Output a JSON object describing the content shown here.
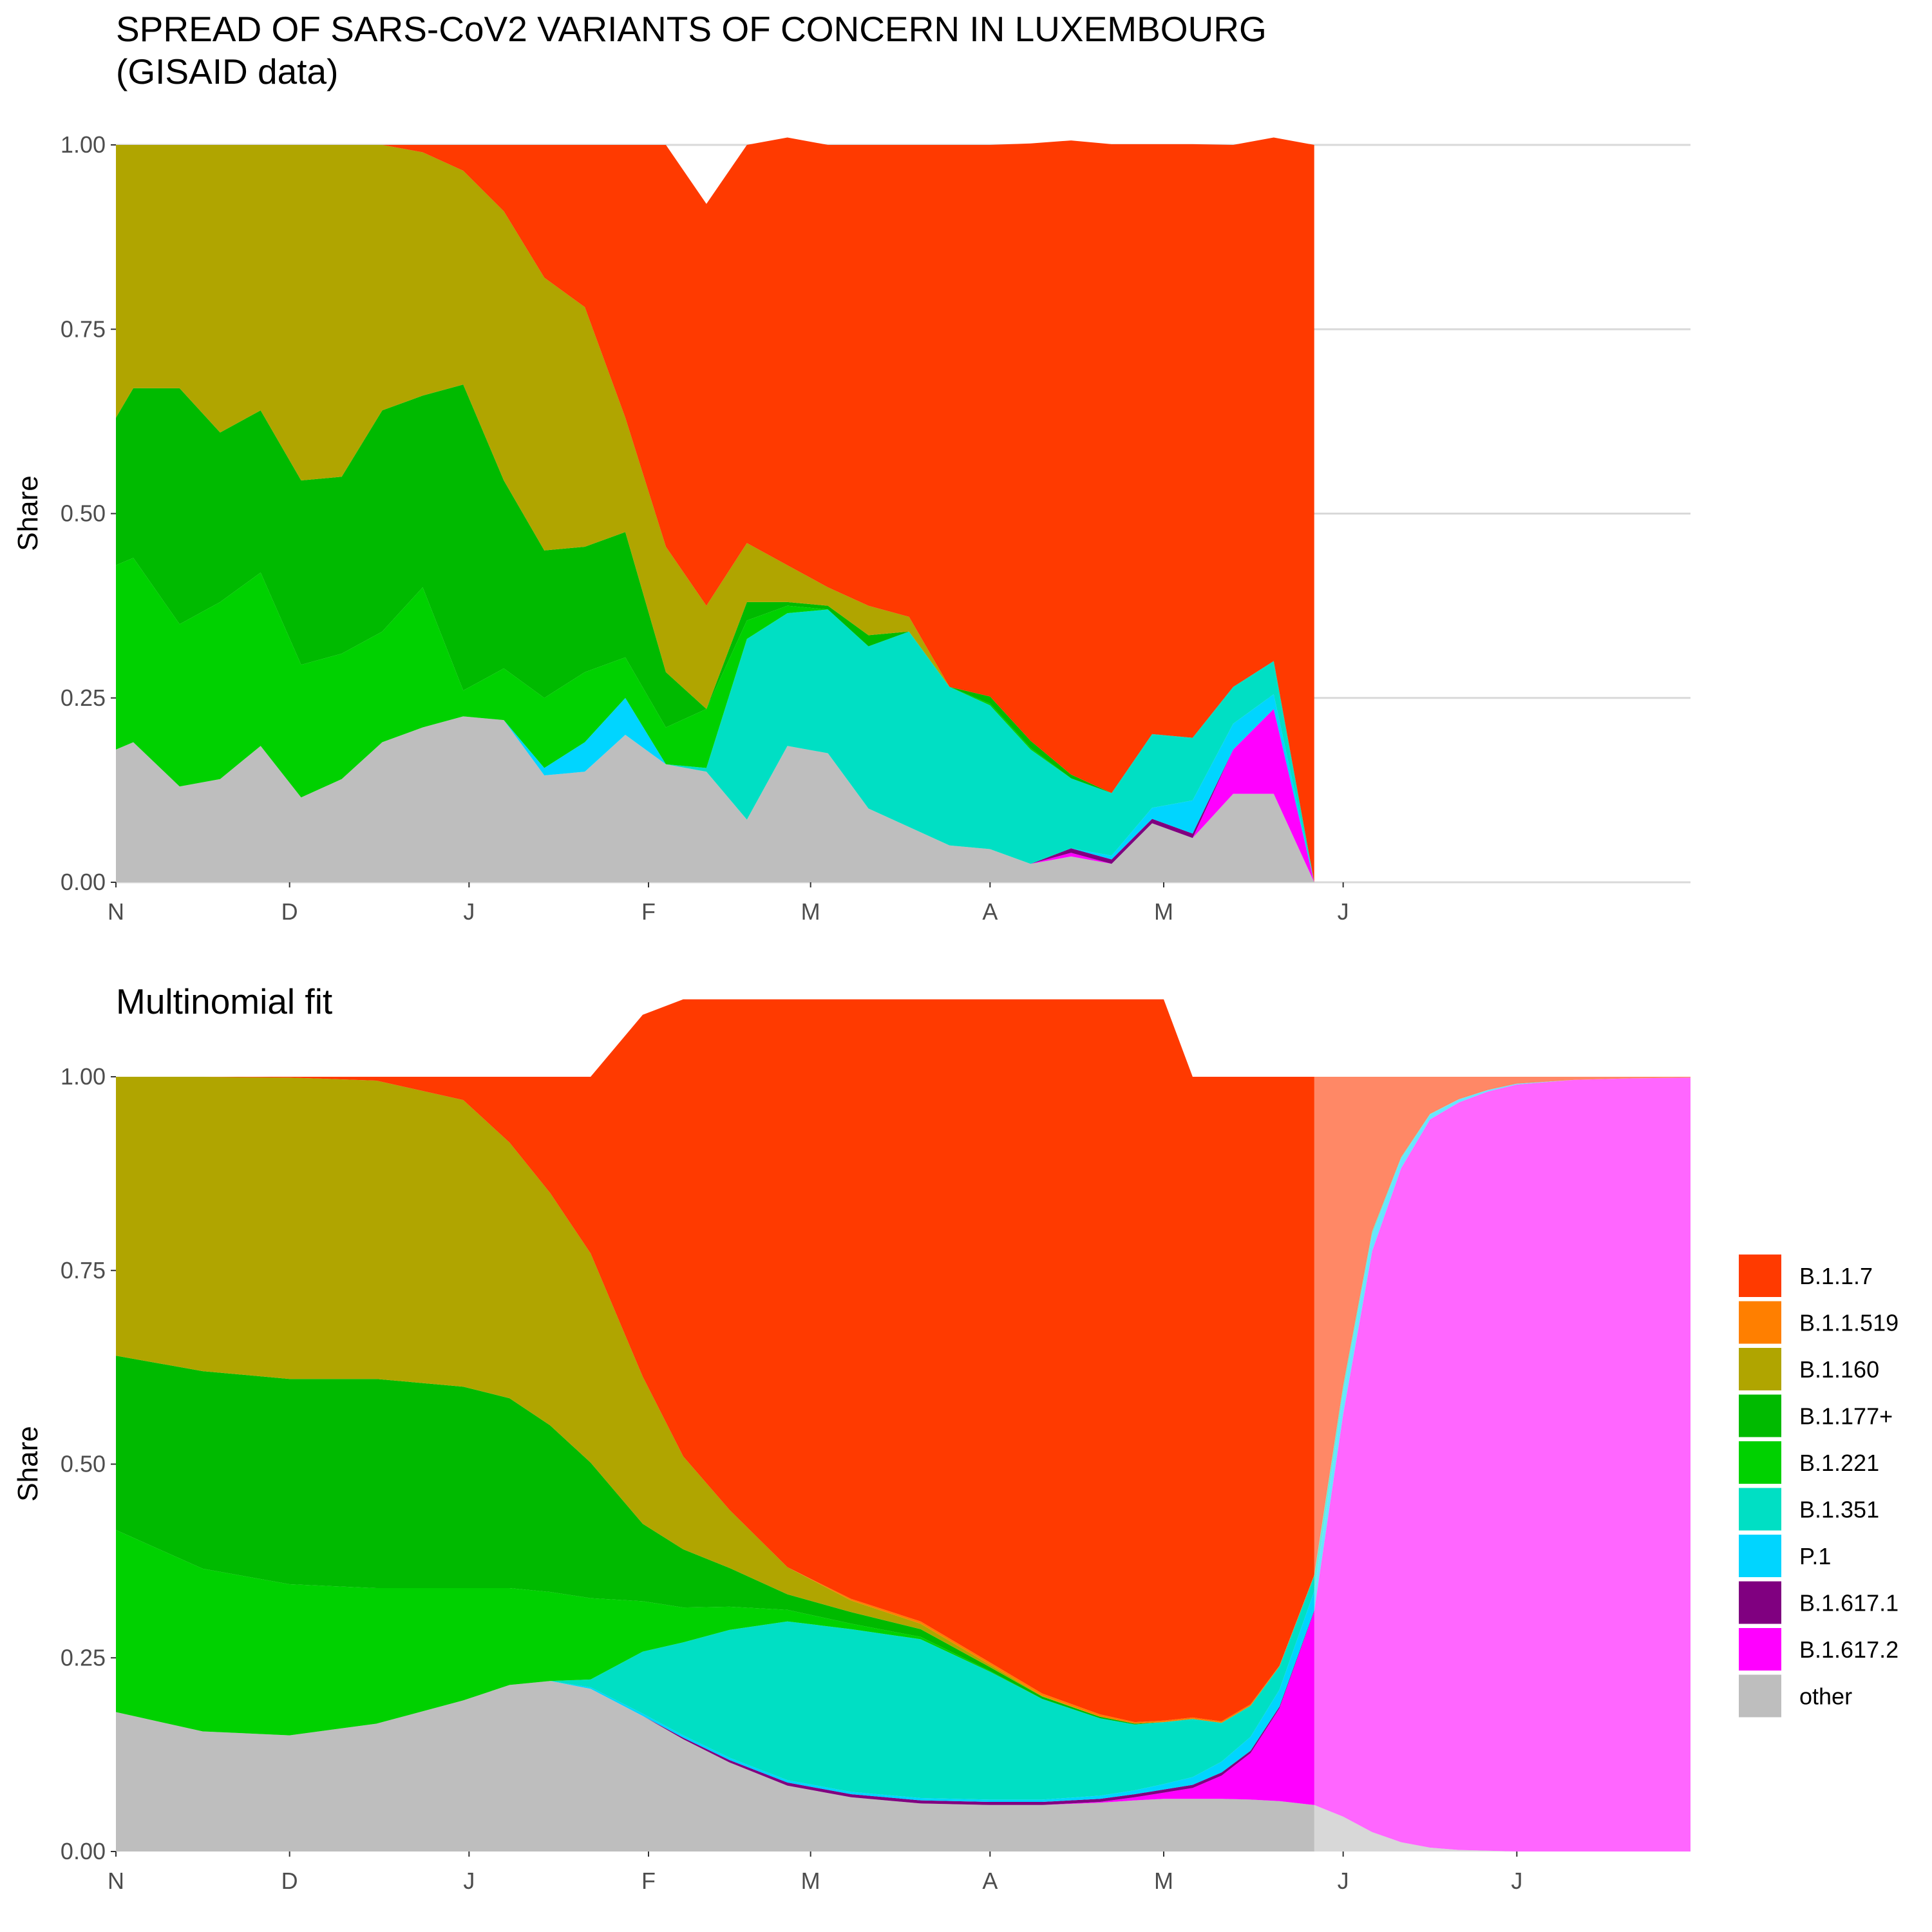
{
  "titles": {
    "top": "SPREAD OF SARS-CoV2 VARIANTS OF CONCERN IN LUXEMBOURG\n(GISAID data)",
    "bottom": "Multinomial fit"
  },
  "chart_data": [
    {
      "type": "area",
      "stacked": true,
      "title": "SPREAD OF SARS-CoV2 VARIANTS OF CONCERN IN LUXEMBOURG\n(GISAID data)",
      "xlabel": "",
      "ylabel": "Share",
      "xlim": [
        "2020-11-01",
        "2021-07-31"
      ],
      "ylim": [
        0,
        1
      ],
      "y_ticks": [
        "0.00",
        "0.25",
        "0.50",
        "0.75",
        "1.00"
      ],
      "x_ticks": [
        {
          "date": "2020-11-01",
          "label": "N"
        },
        {
          "date": "2020-12-01",
          "label": "D"
        },
        {
          "date": "2021-01-01",
          "label": "J"
        },
        {
          "date": "2021-02-01",
          "label": "F"
        },
        {
          "date": "2021-03-01",
          "label": "M"
        },
        {
          "date": "2021-04-01",
          "label": "A"
        },
        {
          "date": "2021-05-01",
          "label": "M"
        },
        {
          "date": "2021-06-01",
          "label": "J"
        }
      ],
      "grid": "horizontal",
      "x": [
        "2020-11-01",
        "2020-11-04",
        "2020-11-12",
        "2020-11-19",
        "2020-11-26",
        "2020-12-03",
        "2020-12-10",
        "2020-12-17",
        "2020-12-24",
        "2020-12-31",
        "2021-01-07",
        "2021-01-14",
        "2021-01-21",
        "2021-01-28",
        "2021-02-04",
        "2021-02-11",
        "2021-02-18",
        "2021-02-25",
        "2021-03-04",
        "2021-03-11",
        "2021-03-18",
        "2021-03-25",
        "2021-04-01",
        "2021-04-08",
        "2021-04-15",
        "2021-04-22",
        "2021-04-29",
        "2021-05-06",
        "2021-05-13",
        "2021-05-20",
        "2021-05-27"
      ],
      "series": [
        {
          "name": "other",
          "color": "#BEBEBE",
          "values": [
            0.18,
            0.19,
            0.13,
            0.14,
            0.185,
            0.115,
            0.14,
            0.19,
            0.21,
            0.225,
            0.22,
            0.145,
            0.15,
            0.2,
            0.16,
            0.15,
            0.085,
            0.185,
            0.175,
            0.1,
            0.075,
            0.05,
            0.045,
            0.025,
            0.035,
            0.025,
            0.08,
            0.06,
            0.12,
            0.12,
            0
          ]
        },
        {
          "name": "B.1.617.2",
          "color": "#FF00FF",
          "values": [
            0,
            0,
            0,
            0,
            0,
            0,
            0,
            0,
            0,
            0,
            0,
            0,
            0,
            0,
            0,
            0,
            0,
            0,
            0,
            0,
            0,
            0,
            0,
            0,
            0.005,
            0,
            0,
            0,
            0.06,
            0.115,
            0
          ]
        },
        {
          "name": "B.1.617.1",
          "color": "#800080",
          "values": [
            0,
            0,
            0,
            0,
            0,
            0,
            0,
            0,
            0,
            0,
            0,
            0,
            0,
            0,
            0,
            0,
            0,
            0,
            0,
            0,
            0,
            0,
            0,
            0,
            0.006,
            0.006,
            0.006,
            0.006,
            0,
            0,
            0
          ]
        },
        {
          "name": "P.1",
          "color": "#00D5FF",
          "values": [
            0,
            0,
            0,
            0,
            0,
            0,
            0,
            0,
            0,
            0,
            0,
            0.01,
            0.04,
            0.05,
            0,
            0,
            0,
            0,
            0,
            0,
            0,
            0,
            0,
            0,
            0,
            0.005,
            0.015,
            0.045,
            0.035,
            0.02,
            0
          ]
        },
        {
          "name": "B.1.351",
          "color": "#00DFC4",
          "values": [
            0,
            0,
            0,
            0,
            0,
            0,
            0,
            0,
            0,
            0,
            0,
            0,
            0,
            0,
            0,
            0.005,
            0.245,
            0.18,
            0.195,
            0.22,
            0.265,
            0.215,
            0.195,
            0.155,
            0.095,
            0.085,
            0.1,
            0.085,
            0.05,
            0.045,
            0
          ]
        },
        {
          "name": "B.1.221",
          "color": "#00D100",
          "values": [
            0.25,
            0.25,
            0.22,
            0.24,
            0.235,
            0.18,
            0.17,
            0.15,
            0.19,
            0.035,
            0.07,
            0.095,
            0.095,
            0.055,
            0.05,
            0.08,
            0.025,
            0.01,
            0,
            0,
            0,
            0,
            0.002,
            0.002,
            0,
            0,
            0,
            0,
            0,
            0,
            0
          ]
        },
        {
          "name": "B.1.177+",
          "color": "#00BA00",
          "values": [
            0.2,
            0.23,
            0.32,
            0.23,
            0.22,
            0.25,
            0.24,
            0.3,
            0.26,
            0.415,
            0.255,
            0.2,
            0.17,
            0.17,
            0.075,
            0,
            0.025,
            0.005,
            0.005,
            0.015,
            0,
            0,
            0.01,
            0.01,
            0.005,
            0,
            0,
            0,
            0,
            0,
            0
          ]
        },
        {
          "name": "B.1.160",
          "color": "#B0A500",
          "values": [
            0.37,
            0.33,
            0.33,
            0.39,
            0.36,
            0.455,
            0.45,
            0.36,
            0.33,
            0.29,
            0.365,
            0.37,
            0.325,
            0.155,
            0.17,
            0.14,
            0.08,
            0.05,
            0.025,
            0.04,
            0.02,
            0,
            0,
            0,
            0,
            0,
            0,
            0,
            0,
            0,
            0
          ]
        },
        {
          "name": "B.1.1.519",
          "color": "#FF7F00",
          "values": [
            0,
            0,
            0,
            0,
            0,
            0,
            0,
            0,
            0,
            0,
            0,
            0,
            0,
            0,
            0,
            0,
            0,
            0,
            0,
            0,
            0,
            0,
            0,
            0,
            0,
            0,
            0,
            0,
            0,
            0,
            0
          ]
        },
        {
          "name": "B.1.1.7",
          "color": "#FF3A00",
          "values": [
            0,
            0,
            0,
            0,
            0,
            0,
            0,
            0,
            0.01,
            0.035,
            0.09,
            0.18,
            0.22,
            0.37,
            0.545,
            0.545,
            0.54,
            0.58,
            0.6,
            0.625,
            0.64,
            0.735,
            0.748,
            0.81,
            0.86,
            0.88,
            0.8,
            0.805,
            0.735,
            0.71,
            1
          ]
        }
      ]
    },
    {
      "type": "area",
      "stacked": true,
      "title": "Multinomial fit",
      "xlabel": "",
      "ylabel": "Share",
      "xlim": [
        "2020-11-01",
        "2021-07-31"
      ],
      "ylim": [
        0,
        1
      ],
      "y_ticks": [
        "0.00",
        "0.25",
        "0.50",
        "0.75",
        "1.00"
      ],
      "x_ticks": [
        {
          "date": "2020-11-01",
          "label": "N"
        },
        {
          "date": "2020-12-01",
          "label": "D"
        },
        {
          "date": "2021-01-01",
          "label": "J"
        },
        {
          "date": "2021-02-01",
          "label": "F"
        },
        {
          "date": "2021-03-01",
          "label": "M"
        },
        {
          "date": "2021-04-01",
          "label": "A"
        },
        {
          "date": "2021-05-01",
          "label": "M"
        },
        {
          "date": "2021-06-01",
          "label": "J"
        },
        {
          "date": "2021-07-01",
          "label": "J"
        }
      ],
      "grid": "none",
      "projection_start": "2021-05-27",
      "x": [
        "2020-11-01",
        "2020-11-16",
        "2020-12-01",
        "2020-12-16",
        "2020-12-31",
        "2021-01-08",
        "2021-01-15",
        "2021-01-22",
        "2021-01-31",
        "2021-02-07",
        "2021-02-15",
        "2021-02-25",
        "2021-03-08",
        "2021-03-20",
        "2021-04-01",
        "2021-04-10",
        "2021-04-20",
        "2021-04-26",
        "2021-05-01",
        "2021-05-06",
        "2021-05-11",
        "2021-05-16",
        "2021-05-21",
        "2021-05-27",
        "2021-06-01",
        "2021-06-06",
        "2021-06-11",
        "2021-06-16",
        "2021-06-21",
        "2021-06-26",
        "2021-07-01",
        "2021-07-11",
        "2021-07-21",
        "2021-07-31"
      ],
      "series": [
        {
          "name": "other",
          "color": "#BEBEBE",
          "values": [
            0.18,
            0.155,
            0.15,
            0.165,
            0.195,
            0.215,
            0.22,
            0.21,
            0.175,
            0.145,
            0.115,
            0.085,
            0.07,
            0.062,
            0.06,
            0.06,
            0.063,
            0.066,
            0.068,
            0.068,
            0.068,
            0.067,
            0.065,
            0.06,
            0.045,
            0.025,
            0.012,
            0.005,
            0.002,
            0.001,
            0,
            0,
            0,
            0
          ]
        },
        {
          "name": "B.1.617.2",
          "color": "#FF00FF",
          "values": [
            0,
            0,
            0,
            0,
            0,
            0,
            0,
            0,
            0,
            0,
            0,
            0,
            0,
            0,
            0,
            0,
            0.001,
            0.004,
            0.008,
            0.014,
            0.03,
            0.06,
            0.12,
            0.25,
            0.52,
            0.75,
            0.87,
            0.94,
            0.965,
            0.98,
            0.99,
            0.996,
            0.998,
            0.999
          ]
        },
        {
          "name": "B.1.617.1",
          "color": "#800080",
          "values": [
            0,
            0,
            0,
            0,
            0,
            0,
            0,
            0,
            0,
            0.002,
            0.003,
            0.004,
            0.004,
            0.004,
            0.004,
            0.004,
            0.004,
            0.004,
            0.004,
            0.004,
            0.004,
            0.003,
            0.002,
            0.001,
            0,
            0,
            0,
            0,
            0,
            0,
            0,
            0,
            0,
            0
          ]
        },
        {
          "name": "P.1",
          "color": "#00D5FF",
          "values": [
            0,
            0,
            0,
            0,
            0,
            0,
            0,
            0.002,
            0.003,
            0.003,
            0.003,
            0.003,
            0.003,
            0.003,
            0.003,
            0.003,
            0.004,
            0.005,
            0.007,
            0.01,
            0.014,
            0.018,
            0.022,
            0.025,
            0.026,
            0.02,
            0.012,
            0.006,
            0.004,
            0.002,
            0.001,
            0,
            0,
            0
          ]
        },
        {
          "name": "B.1.351",
          "color": "#00DFC4",
          "values": [
            0,
            0,
            0,
            0,
            0,
            0,
            0,
            0.01,
            0.08,
            0.12,
            0.165,
            0.205,
            0.21,
            0.205,
            0.165,
            0.13,
            0.1,
            0.085,
            0.08,
            0.075,
            0.05,
            0.04,
            0.03,
            0.02,
            0.01,
            0.005,
            0.002,
            0.001,
            0,
            0,
            0,
            0,
            0,
            0
          ]
        },
        {
          "name": "B.1.221",
          "color": "#00D100",
          "values": [
            0.235,
            0.21,
            0.195,
            0.175,
            0.145,
            0.125,
            0.115,
            0.105,
            0.065,
            0.045,
            0.03,
            0.015,
            0.007,
            0.003,
            0.001,
            0,
            0,
            0,
            0,
            0,
            0,
            0,
            0,
            0,
            0,
            0,
            0,
            0,
            0,
            0,
            0,
            0,
            0,
            0
          ]
        },
        {
          "name": "B.1.177+",
          "color": "#00BA00",
          "values": [
            0.225,
            0.255,
            0.265,
            0.27,
            0.26,
            0.245,
            0.215,
            0.175,
            0.1,
            0.075,
            0.05,
            0.02,
            0.015,
            0.01,
            0.005,
            0.003,
            0.002,
            0.001,
            0,
            0,
            0,
            0,
            0,
            0,
            0,
            0,
            0,
            0,
            0,
            0,
            0,
            0,
            0,
            0
          ]
        },
        {
          "name": "B.1.160",
          "color": "#B0A500",
          "values": [
            0.36,
            0.38,
            0.389,
            0.385,
            0.37,
            0.33,
            0.3,
            0.27,
            0.19,
            0.12,
            0.075,
            0.035,
            0.015,
            0.007,
            0.003,
            0.001,
            0,
            0,
            0,
            0,
            0,
            0,
            0,
            0,
            0,
            0,
            0,
            0,
            0,
            0,
            0,
            0,
            0,
            0
          ]
        },
        {
          "name": "B.1.1.519",
          "color": "#FF7F00",
          "values": [
            0,
            0,
            0,
            0,
            0,
            0,
            0,
            0,
            0,
            0,
            0,
            0,
            0.002,
            0.003,
            0.003,
            0.003,
            0.003,
            0.002,
            0.002,
            0.002,
            0.002,
            0.002,
            0.001,
            0.001,
            0,
            0,
            0,
            0,
            0,
            0,
            0,
            0,
            0,
            0
          ]
        },
        {
          "name": "B.1.1.7",
          "color": "#FF3A00",
          "values": [
            0,
            0,
            0.001,
            0.005,
            0.03,
            0.085,
            0.15,
            0.228,
            0.467,
            0.59,
            0.659,
            0.733,
            0.774,
            0.803,
            0.856,
            0.896,
            0.923,
            0.933,
            0.931,
            0.827,
            0.832,
            0.81,
            0.76,
            0.643,
            0.399,
            0.2,
            0.104,
            0.048,
            0.029,
            0.017,
            0.009,
            0.004,
            0.002,
            0.001
          ]
        }
      ]
    }
  ],
  "legend": {
    "position": "right",
    "items": [
      {
        "label": "B.1.1.7",
        "color": "#FF3A00"
      },
      {
        "label": "B.1.1.519",
        "color": "#FF7F00"
      },
      {
        "label": "B.1.160",
        "color": "#B0A500"
      },
      {
        "label": "B.1.177+",
        "color": "#00BA00"
      },
      {
        "label": "B.1.221",
        "color": "#00D100"
      },
      {
        "label": "B.1.351",
        "color": "#00DFC4"
      },
      {
        "label": "P.1",
        "color": "#00D5FF"
      },
      {
        "label": "B.1.617.1",
        "color": "#800080"
      },
      {
        "label": "B.1.617.2",
        "color": "#FF00FF"
      },
      {
        "label": "other",
        "color": "#BEBEBE"
      }
    ]
  }
}
